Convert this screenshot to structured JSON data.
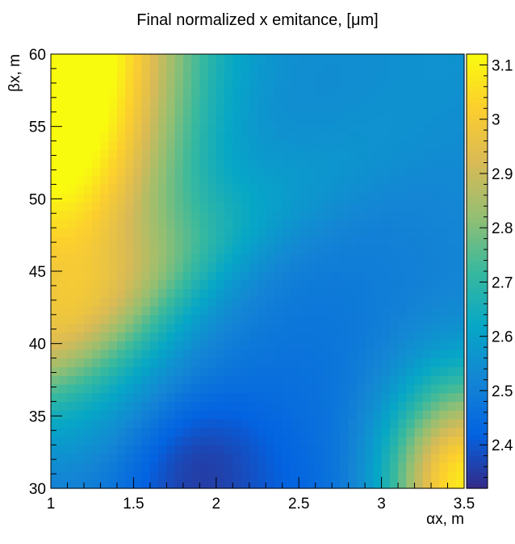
{
  "chart_data": {
    "type": "heatmap",
    "title": "Final normalized x emitance, [μm]",
    "xlabel": "αx, m",
    "ylabel": "βx, m",
    "xlim": [
      1,
      3.5
    ],
    "ylim": [
      30,
      60
    ],
    "x_ticks": [
      "1",
      "1.5",
      "2",
      "2.5",
      "3",
      "3.5"
    ],
    "y_ticks": [
      "30",
      "35",
      "40",
      "45",
      "50",
      "55",
      "60"
    ],
    "z_range": [
      2.32,
      3.12
    ],
    "z_ticks": [
      "2.4",
      "2.5",
      "2.6",
      "2.7",
      "2.8",
      "2.9",
      "3",
      "3.1"
    ],
    "colormap": [
      "#352a87",
      "#0363e1",
      "#1485d4",
      "#06a7c6",
      "#38b99e",
      "#92bf73",
      "#d9ba56",
      "#fcce2e",
      "#f9fb0e"
    ],
    "bins": {
      "nx": 50,
      "ny": 50
    },
    "description_of_surface": {
      "max_corner": {
        "x": 1.0,
        "y": 60,
        "value": 3.12
      },
      "min_region": {
        "x": 1.85,
        "y": 31.5,
        "value": 2.34
      },
      "secondary_high": {
        "x": 3.5,
        "y": 30,
        "value": 2.95
      }
    }
  }
}
